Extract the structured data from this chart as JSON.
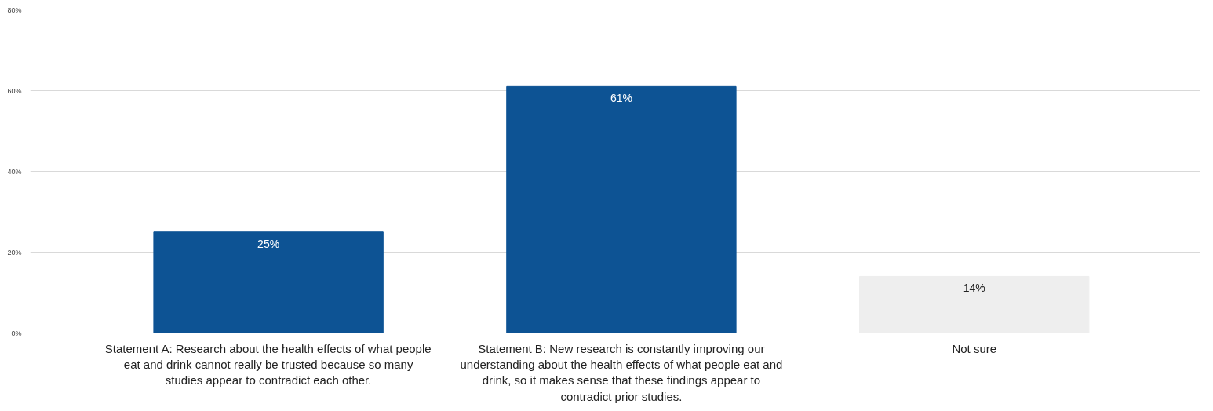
{
  "chart_data": {
    "type": "bar",
    "categories": [
      "Statement A: Research about the health effects of what people eat and drink cannot really be trusted because so many studies appear to contradict each other.",
      "Statement B: New research is constantly improving our understanding about the health effects of what people eat and drink, so it makes sense that these findings appear to contradict prior studies.",
      "Not sure"
    ],
    "values": [
      25,
      61,
      14
    ],
    "colors": [
      "#0d5394",
      "#0d5394",
      "#eeeeee"
    ],
    "value_labels": [
      "25%",
      "61%",
      "14%"
    ],
    "ylim": [
      0,
      80
    ],
    "yticks": [
      {
        "value": 0,
        "label": "0%"
      },
      {
        "value": 20,
        "label": "20%"
      },
      {
        "value": 40,
        "label": "40%"
      },
      {
        "value": 60,
        "label": "60%"
      },
      {
        "value": 80,
        "label": "80%"
      }
    ],
    "grid": "y"
  }
}
